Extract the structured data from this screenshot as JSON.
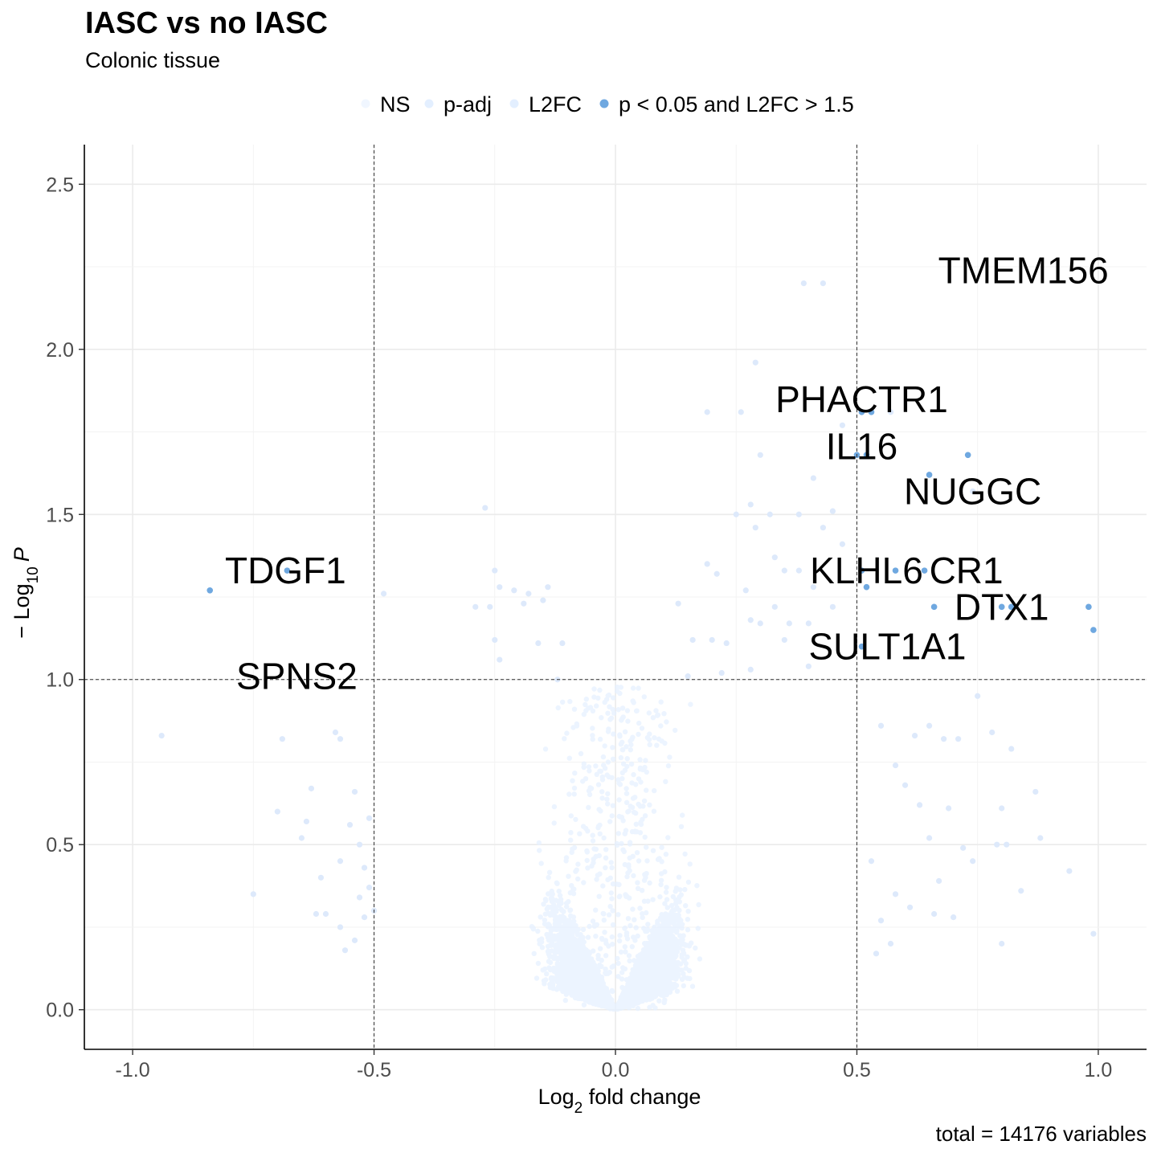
{
  "chart_data": {
    "type": "scatter",
    "title": "IASC vs no IASC",
    "subtitle": "Colonic tissue",
    "xlabel": "Log",
    "xlabel_sub": "2",
    "xlabel_rest": " fold change",
    "ylabel_prefix": "− Log",
    "ylabel_sub": "10",
    "ylabel_var": "P",
    "caption": "total = 14176 variables",
    "xlim": [
      -1.1,
      1.1
    ],
    "ylim": [
      -0.12,
      2.62
    ],
    "x_ticks": [
      -1.0,
      -0.5,
      0.0,
      0.5,
      1.0
    ],
    "x_tick_labels": [
      "-1.0",
      "-0.5",
      "0.0",
      "0.5",
      "1.0"
    ],
    "y_ticks": [
      0.0,
      0.5,
      1.0,
      1.5,
      2.0,
      2.5
    ],
    "y_tick_labels": [
      "0.0",
      "0.5",
      "1.0",
      "1.5",
      "2.0",
      "2.5"
    ],
    "thresholds": {
      "x": [
        -0.5,
        0.5
      ],
      "y": 1.0
    },
    "grid": true,
    "legend_position": "top",
    "legend": [
      {
        "label": "NS",
        "color": "#f0f6ff"
      },
      {
        "label": "p-adj",
        "color": "#e3efff"
      },
      {
        "label": "L2FC",
        "color": "#e3efff"
      },
      {
        "label": "p < 0.05 and L2FC > 1.5",
        "color": "#6fa8e0"
      }
    ],
    "significant_points": [
      {
        "x": -0.84,
        "y": 1.27
      },
      {
        "x": -0.68,
        "y": 1.33
      },
      {
        "x": 0.51,
        "y": 1.81
      },
      {
        "x": 0.53,
        "y": 1.81
      },
      {
        "x": 0.5,
        "y": 1.68
      },
      {
        "x": 0.52,
        "y": 1.68
      },
      {
        "x": 0.65,
        "y": 1.62
      },
      {
        "x": 0.73,
        "y": 1.68
      },
      {
        "x": 0.51,
        "y": 1.33
      },
      {
        "x": 0.58,
        "y": 1.33
      },
      {
        "x": 0.64,
        "y": 1.33
      },
      {
        "x": 0.52,
        "y": 1.28
      },
      {
        "x": 0.66,
        "y": 1.22
      },
      {
        "x": 0.8,
        "y": 1.22
      },
      {
        "x": 0.82,
        "y": 1.22
      },
      {
        "x": 0.98,
        "y": 1.22
      },
      {
        "x": 0.99,
        "y": 1.15
      },
      {
        "x": 0.51,
        "y": 1.1
      }
    ],
    "light_points": [
      {
        "x": 0.39,
        "y": 2.2
      },
      {
        "x": 0.43,
        "y": 2.2
      },
      {
        "x": 0.29,
        "y": 1.96
      },
      {
        "x": 0.19,
        "y": 1.81
      },
      {
        "x": 0.26,
        "y": 1.81
      },
      {
        "x": 0.47,
        "y": 1.77
      },
      {
        "x": 0.57,
        "y": 1.81
      },
      {
        "x": 0.3,
        "y": 1.68
      },
      {
        "x": 0.41,
        "y": 1.61
      },
      {
        "x": 0.74,
        "y": 1.57
      },
      {
        "x": -0.27,
        "y": 1.52
      },
      {
        "x": 0.25,
        "y": 1.5
      },
      {
        "x": 0.28,
        "y": 1.53
      },
      {
        "x": 0.32,
        "y": 1.5
      },
      {
        "x": 0.38,
        "y": 1.5
      },
      {
        "x": 0.45,
        "y": 1.51
      },
      {
        "x": 0.29,
        "y": 1.46
      },
      {
        "x": 0.43,
        "y": 1.46
      },
      {
        "x": 0.47,
        "y": 1.41
      },
      {
        "x": 0.19,
        "y": 1.35
      },
      {
        "x": 0.33,
        "y": 1.37
      },
      {
        "x": 0.35,
        "y": 1.33
      },
      {
        "x": 0.38,
        "y": 1.33
      },
      {
        "x": 0.41,
        "y": 1.28
      },
      {
        "x": -0.25,
        "y": 1.33
      },
      {
        "x": -0.24,
        "y": 1.28
      },
      {
        "x": -0.21,
        "y": 1.27
      },
      {
        "x": -0.18,
        "y": 1.26
      },
      {
        "x": -0.14,
        "y": 1.28
      },
      {
        "x": -0.48,
        "y": 1.26
      },
      {
        "x": -0.29,
        "y": 1.22
      },
      {
        "x": -0.26,
        "y": 1.22
      },
      {
        "x": -0.19,
        "y": 1.23
      },
      {
        "x": -0.15,
        "y": 1.24
      },
      {
        "x": -0.25,
        "y": 1.12
      },
      {
        "x": -0.16,
        "y": 1.11
      },
      {
        "x": -0.11,
        "y": 1.11
      },
      {
        "x": -0.24,
        "y": 1.06
      },
      {
        "x": 0.13,
        "y": 1.23
      },
      {
        "x": 0.21,
        "y": 1.32
      },
      {
        "x": 0.27,
        "y": 1.27
      },
      {
        "x": 0.33,
        "y": 1.22
      },
      {
        "x": 0.28,
        "y": 1.18
      },
      {
        "x": 0.3,
        "y": 1.17
      },
      {
        "x": 0.36,
        "y": 1.17
      },
      {
        "x": 0.16,
        "y": 1.12
      },
      {
        "x": 0.2,
        "y": 1.12
      },
      {
        "x": 0.23,
        "y": 1.11
      },
      {
        "x": 0.35,
        "y": 1.12
      },
      {
        "x": 0.4,
        "y": 1.17
      },
      {
        "x": 0.45,
        "y": 1.22
      },
      {
        "x": -0.12,
        "y": 1.0
      },
      {
        "x": 0.15,
        "y": 1.01
      },
      {
        "x": 0.22,
        "y": 1.02
      },
      {
        "x": 0.28,
        "y": 1.03
      },
      {
        "x": 0.4,
        "y": 1.04
      },
      {
        "x": -0.94,
        "y": 0.83
      },
      {
        "x": -0.69,
        "y": 0.82
      },
      {
        "x": -0.58,
        "y": 0.84
      },
      {
        "x": -0.57,
        "y": 0.82
      },
      {
        "x": -0.7,
        "y": 0.6
      },
      {
        "x": -0.65,
        "y": 0.52
      },
      {
        "x": -0.63,
        "y": 0.67
      },
      {
        "x": -0.64,
        "y": 0.57
      },
      {
        "x": -0.54,
        "y": 0.66
      },
      {
        "x": -0.75,
        "y": 0.35
      },
      {
        "x": -0.62,
        "y": 0.29
      },
      {
        "x": -0.61,
        "y": 0.4
      },
      {
        "x": -0.57,
        "y": 0.45
      },
      {
        "x": -0.55,
        "y": 0.56
      },
      {
        "x": -0.53,
        "y": 0.5
      },
      {
        "x": -0.53,
        "y": 0.34
      },
      {
        "x": -0.52,
        "y": 0.43
      },
      {
        "x": -0.51,
        "y": 0.58
      },
      {
        "x": -0.51,
        "y": 0.37
      },
      {
        "x": -0.5,
        "y": 0.3
      },
      {
        "x": -0.57,
        "y": 0.25
      },
      {
        "x": -0.56,
        "y": 0.18
      },
      {
        "x": -0.54,
        "y": 0.21
      },
      {
        "x": -0.52,
        "y": 0.28
      },
      {
        "x": -0.6,
        "y": 0.29
      },
      {
        "x": 0.55,
        "y": 0.86
      },
      {
        "x": 0.58,
        "y": 0.74
      },
      {
        "x": 0.62,
        "y": 0.83
      },
      {
        "x": 0.65,
        "y": 0.86
      },
      {
        "x": 0.68,
        "y": 0.82
      },
      {
        "x": 0.71,
        "y": 0.82
      },
      {
        "x": 0.75,
        "y": 0.95
      },
      {
        "x": 0.78,
        "y": 0.84
      },
      {
        "x": 0.82,
        "y": 0.79
      },
      {
        "x": 0.6,
        "y": 0.68
      },
      {
        "x": 0.63,
        "y": 0.62
      },
      {
        "x": 0.65,
        "y": 0.52
      },
      {
        "x": 0.69,
        "y": 0.61
      },
      {
        "x": 0.72,
        "y": 0.49
      },
      {
        "x": 0.74,
        "y": 0.45
      },
      {
        "x": 0.79,
        "y": 0.5
      },
      {
        "x": 0.8,
        "y": 0.61
      },
      {
        "x": 0.81,
        "y": 0.5
      },
      {
        "x": 0.87,
        "y": 0.66
      },
      {
        "x": 0.88,
        "y": 0.52
      },
      {
        "x": 0.84,
        "y": 0.36
      },
      {
        "x": 0.94,
        "y": 0.42
      },
      {
        "x": 0.99,
        "y": 0.23
      },
      {
        "x": 0.8,
        "y": 0.2
      },
      {
        "x": 0.58,
        "y": 0.35
      },
      {
        "x": 0.61,
        "y": 0.31
      },
      {
        "x": 0.66,
        "y": 0.29
      },
      {
        "x": 0.67,
        "y": 0.39
      },
      {
        "x": 0.7,
        "y": 0.28
      },
      {
        "x": 0.53,
        "y": 0.45
      },
      {
        "x": 0.55,
        "y": 0.27
      },
      {
        "x": 0.57,
        "y": 0.2
      },
      {
        "x": 0.54,
        "y": 0.17
      }
    ],
    "cloud": {
      "n_points": 9000,
      "description": "bulk of non-significant genes forming a V shape centred at 0",
      "x_range": [
        -0.5,
        0.5
      ],
      "y_max": 1.0
    },
    "labels": [
      {
        "text": "TMEM156",
        "x": 0.67,
        "y": 2.2
      },
      {
        "text": "PHACTR1",
        "x": 0.51,
        "y": 1.81
      },
      {
        "text": "IL16",
        "x": 0.51,
        "y": 1.68
      },
      {
        "text": "NUGGC",
        "x": 0.74,
        "y": 1.57
      },
      {
        "text": "TDGF1",
        "x": -0.68,
        "y": 1.33
      },
      {
        "text": "KLHL6",
        "x": 0.51,
        "y": 1.33
      },
      {
        "text": "CR1",
        "x": 0.66,
        "y": 1.33
      },
      {
        "text": "DTX1",
        "x": 0.8,
        "y": 1.22
      },
      {
        "text": "SULT1A1",
        "x": 0.53,
        "y": 1.1
      },
      {
        "text": "SPNS2",
        "x": -0.66,
        "y": 1.0
      }
    ]
  }
}
